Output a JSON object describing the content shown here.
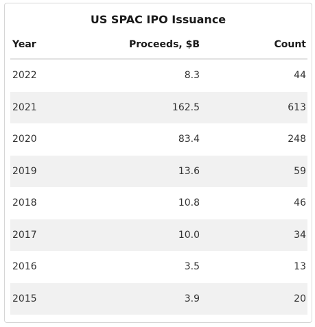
{
  "chart_data": {
    "type": "table",
    "title": "US SPAC IPO Issuance",
    "columns": [
      "Year",
      "Proceeds, $B",
      "Count"
    ],
    "rows": [
      {
        "year": "2022",
        "proceeds": "8.3",
        "count": "44"
      },
      {
        "year": "2021",
        "proceeds": "162.5",
        "count": "613"
      },
      {
        "year": "2020",
        "proceeds": "83.4",
        "count": "248"
      },
      {
        "year": "2019",
        "proceeds": "13.6",
        "count": "59"
      },
      {
        "year": "2018",
        "proceeds": "10.8",
        "count": "46"
      },
      {
        "year": "2017",
        "proceeds": "10.0",
        "count": "34"
      },
      {
        "year": "2016",
        "proceeds": "3.5",
        "count": "13"
      },
      {
        "year": "2015",
        "proceeds": "3.9",
        "count": "20"
      }
    ]
  },
  "colors": {
    "header_text": "#1a1a1a",
    "body_text": "#333333",
    "stripe": "#f1f1f1",
    "border": "#d6d6d6"
  }
}
